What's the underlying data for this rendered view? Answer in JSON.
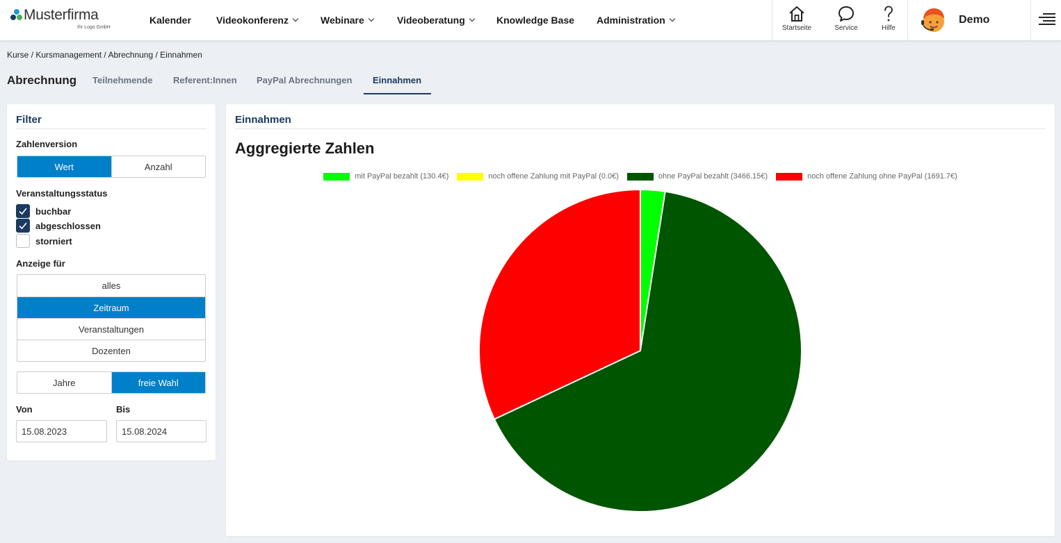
{
  "brand": {
    "name": "Musterfirma",
    "sub": "Ihr Logo GmbH"
  },
  "nav": [
    {
      "label": "Kalender",
      "dropdown": false
    },
    {
      "label": "Videokonferenz",
      "dropdown": true
    },
    {
      "label": "Webinare",
      "dropdown": true
    },
    {
      "label": "Videoberatung",
      "dropdown": true
    },
    {
      "label": "Knowledge Base",
      "dropdown": false
    },
    {
      "label": "Administration",
      "dropdown": true
    }
  ],
  "top_actions": [
    {
      "label": "Startseite",
      "icon": "home-icon"
    },
    {
      "label": "Service",
      "icon": "chat-icon"
    },
    {
      "label": "Hilfe",
      "icon": "question-icon"
    }
  ],
  "user": {
    "name": "Demo"
  },
  "breadcrumb": [
    "Kurse",
    "Kursmanagement",
    "Abrechnung",
    "Einnahmen"
  ],
  "page_title": "Abrechnung",
  "tabs": [
    {
      "label": "Teilnehmende",
      "active": false
    },
    {
      "label": "Referent:Innen",
      "active": false
    },
    {
      "label": "PayPal Abrechnungen",
      "active": false
    },
    {
      "label": "Einnahmen",
      "active": true
    }
  ],
  "filter": {
    "title": "Filter",
    "zahlenversion": {
      "label": "Zahlenversion",
      "options": [
        "Wert",
        "Anzahl"
      ],
      "selected": "Wert"
    },
    "status": {
      "label": "Veranstaltungsstatus",
      "items": [
        {
          "label": "buchbar",
          "checked": true
        },
        {
          "label": "abgeschlossen",
          "checked": true
        },
        {
          "label": "storniert",
          "checked": false
        }
      ]
    },
    "anzeige": {
      "label": "Anzeige für",
      "options": [
        "alles",
        "Zeitraum",
        "Veranstaltungen",
        "Dozenten"
      ],
      "selected": "Zeitraum"
    },
    "zeitraum": {
      "options": [
        "Jahre",
        "freie Wahl"
      ],
      "selected": "freie Wahl"
    },
    "von": {
      "label": "Von",
      "value": "15.08.2023"
    },
    "bis": {
      "label": "Bis",
      "value": "15.08.2024"
    }
  },
  "main": {
    "title": "Einnahmen",
    "heading": "Aggregierte Zahlen"
  },
  "chart_data": {
    "type": "pie",
    "legend_position": "top",
    "series": [
      {
        "name": "mit PayPal bezahlt (130.4€)",
        "value": 130.4,
        "color": "#00ff00"
      },
      {
        "name": "noch offene Zahlung mit PayPal (0.0€)",
        "value": 0.0,
        "color": "#ffff00"
      },
      {
        "name": "ohne PayPal bezahlt (3466.15€)",
        "value": 3466.15,
        "color": "#005500"
      },
      {
        "name": "noch offene Zahlung ohne PayPal (1691.7€)",
        "value": 1691.7,
        "color": "#ff0000"
      }
    ]
  }
}
